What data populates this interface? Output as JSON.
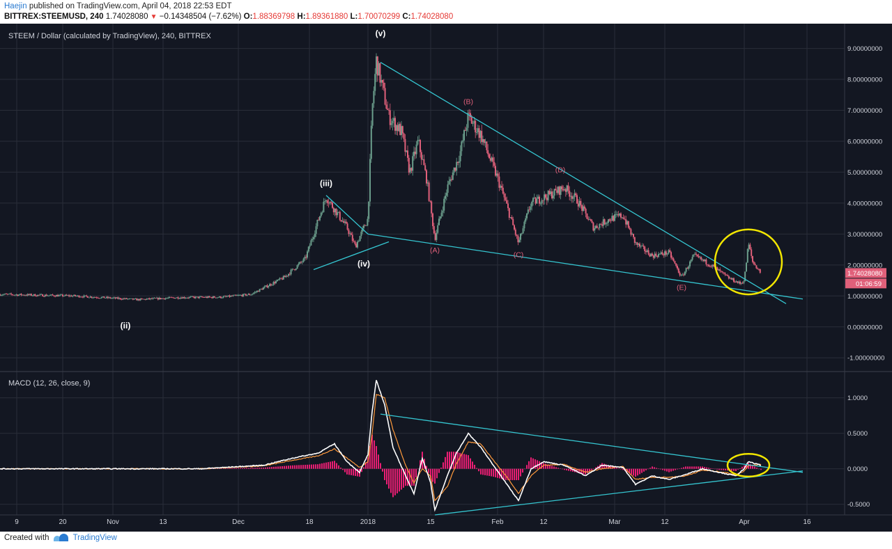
{
  "header": {
    "user": "Haejin",
    "published_text": "published on TradingView.com, April 04, 2018 22:53 EDT",
    "symbol": "BITTREX:STEEMUSD, 240",
    "last": "1.74028080",
    "change_arrow": "▼",
    "change": "−0.14348504 (−7.62%)",
    "o_label": "O:",
    "o": "1.88369798",
    "h_label": "H:",
    "h": "1.89361880",
    "l_label": "L:",
    "l": "1.70070299",
    "c_label": "C:",
    "c": "1.74028080"
  },
  "footer": {
    "created_with": "Created with",
    "brand": "TradingView",
    "logo_icon": "tradingview-logo-icon"
  },
  "colors": {
    "background": "#131722",
    "grid": "#2a2e39",
    "axis_text": "#d1d4dc",
    "candle_up": "#6b9e8c",
    "candle_down": "#e0607a",
    "trendline": "#35c6d1",
    "highlight_circle": "#f2e600",
    "wave_label_white": "#ffffff",
    "wave_label_red": "#e0607a",
    "macd_line": "#ffffff",
    "signal_line": "#ff9a3c",
    "histogram": "#e91e73",
    "price_tag": "#e0607a"
  },
  "chart_data": [
    {
      "type": "candlestick",
      "title": "STEEM / Dollar (calculated by TradingView), 240, BITTREX",
      "y_tick_labels": [
        "9.00000000",
        "8.00000000",
        "7.00000000",
        "6.00000000",
        "5.00000000",
        "4.00000000",
        "3.00000000",
        "2.00000000",
        "1.00000000",
        "0.00000000",
        "-1.00000000"
      ],
      "ylim": [
        -1.4,
        9.8
      ],
      "x_tick_labels": [
        "9",
        "20",
        "Nov",
        "13",
        "Dec",
        "18",
        "2018",
        "15",
        "Feb",
        "12",
        "Mar",
        "12",
        "Apr",
        "16"
      ],
      "x_ticks_day": [
        -84,
        -73,
        -61,
        -49,
        -31,
        -14,
        0,
        15,
        31,
        42,
        59,
        71,
        90,
        105
      ],
      "xlim_days": [
        -88,
        114
      ],
      "last_price_tag": "1.74028080",
      "countdown_tag": "01:06:59",
      "price_path": [
        {
          "x": -88,
          "y": 1.05
        },
        {
          "x": -70,
          "y": 1.0
        },
        {
          "x": -60,
          "y": 0.92
        },
        {
          "x": -55,
          "y": 0.88
        },
        {
          "x": -45,
          "y": 0.95
        },
        {
          "x": -35,
          "y": 0.96
        },
        {
          "x": -28,
          "y": 1.05
        },
        {
          "x": -20,
          "y": 1.6
        },
        {
          "x": -15,
          "y": 2.2
        },
        {
          "x": -10,
          "y": 4.2
        },
        {
          "x": -5,
          "y": 3.2
        },
        {
          "x": -3,
          "y": 2.6
        },
        {
          "x": 0,
          "y": 3.5
        },
        {
          "x": 1,
          "y": 7.0
        },
        {
          "x": 2,
          "y": 8.6
        },
        {
          "x": 5,
          "y": 6.8
        },
        {
          "x": 8,
          "y": 6.3
        },
        {
          "x": 10,
          "y": 5.0
        },
        {
          "x": 12,
          "y": 6.0
        },
        {
          "x": 14,
          "y": 4.8
        },
        {
          "x": 16,
          "y": 2.85
        },
        {
          "x": 19,
          "y": 4.5
        },
        {
          "x": 22,
          "y": 5.6
        },
        {
          "x": 24,
          "y": 6.8
        },
        {
          "x": 27,
          "y": 6.2
        },
        {
          "x": 29,
          "y": 5.5
        },
        {
          "x": 31,
          "y": 4.8
        },
        {
          "x": 33,
          "y": 4.0
        },
        {
          "x": 36,
          "y": 2.7
        },
        {
          "x": 39,
          "y": 4.0
        },
        {
          "x": 44,
          "y": 4.3
        },
        {
          "x": 47,
          "y": 4.5
        },
        {
          "x": 50,
          "y": 4.1
        },
        {
          "x": 54,
          "y": 3.2
        },
        {
          "x": 58,
          "y": 3.5
        },
        {
          "x": 61,
          "y": 3.6
        },
        {
          "x": 64,
          "y": 2.7
        },
        {
          "x": 68,
          "y": 2.3
        },
        {
          "x": 72,
          "y": 2.4
        },
        {
          "x": 75,
          "y": 1.6
        },
        {
          "x": 78,
          "y": 2.3
        },
        {
          "x": 82,
          "y": 2.0
        },
        {
          "x": 86,
          "y": 1.6
        },
        {
          "x": 89,
          "y": 1.4
        },
        {
          "x": 90,
          "y": 1.5
        },
        {
          "x": 91,
          "y": 2.7
        },
        {
          "x": 92,
          "y": 2.1
        },
        {
          "x": 94,
          "y": 1.74
        }
      ],
      "wave_labels": [
        {
          "label": "(ii)",
          "x": -58,
          "y": -0.05,
          "color": "white"
        },
        {
          "label": "(iii)",
          "x": -10,
          "y": 4.55,
          "color": "white"
        },
        {
          "label": "(iv)",
          "x": -1,
          "y": 1.95,
          "color": "white"
        },
        {
          "label": "(v)",
          "x": 3,
          "y": 9.4,
          "color": "white"
        },
        {
          "label": "(A)",
          "x": 16,
          "y": 2.4,
          "color": "red"
        },
        {
          "label": "(B)",
          "x": 24,
          "y": 7.2,
          "color": "red"
        },
        {
          "label": "(C)",
          "x": 36,
          "y": 2.25,
          "color": "red"
        },
        {
          "label": "(D)",
          "x": 46,
          "y": 5.0,
          "color": "red"
        },
        {
          "label": "(E)",
          "x": 75,
          "y": 1.2,
          "color": "red"
        }
      ],
      "trendlines": [
        {
          "x1": -13,
          "y1": 1.85,
          "x2": 5,
          "y2": 2.75
        },
        {
          "x1": -10,
          "y1": 4.25,
          "x2": 0,
          "y2": 3.0
        },
        {
          "x1": 3,
          "y1": 8.55,
          "x2": 100,
          "y2": 0.75
        },
        {
          "x1": 0,
          "y1": 3.0,
          "x2": 104,
          "y2": 0.9
        }
      ],
      "highlight": {
        "x": 91,
        "y": 2.1,
        "r_days": 8,
        "ry_value": 1.05
      }
    },
    {
      "type": "line",
      "title": "MACD (12, 26, close, 9)",
      "y_tick_labels": [
        "1.0000",
        "0.5000",
        "0.0000",
        "-0.5000"
      ],
      "ylim": [
        -0.65,
        1.35
      ],
      "series": [
        {
          "name": "MACD",
          "color": "white",
          "values": [
            {
              "x": -88,
              "y": 0.0
            },
            {
              "x": -40,
              "y": 0.0
            },
            {
              "x": -25,
              "y": 0.05
            },
            {
              "x": -18,
              "y": 0.15
            },
            {
              "x": -12,
              "y": 0.22
            },
            {
              "x": -8,
              "y": 0.35
            },
            {
              "x": -5,
              "y": 0.1
            },
            {
              "x": -2,
              "y": -0.05
            },
            {
              "x": 0,
              "y": 0.2
            },
            {
              "x": 1,
              "y": 0.8
            },
            {
              "x": 2,
              "y": 1.25
            },
            {
              "x": 4,
              "y": 0.9
            },
            {
              "x": 6,
              "y": 0.3
            },
            {
              "x": 9,
              "y": -0.1
            },
            {
              "x": 11,
              "y": -0.35
            },
            {
              "x": 13,
              "y": 0.15
            },
            {
              "x": 15,
              "y": -0.2
            },
            {
              "x": 16,
              "y": -0.58
            },
            {
              "x": 19,
              "y": -0.1
            },
            {
              "x": 21,
              "y": 0.2
            },
            {
              "x": 24,
              "y": 0.5
            },
            {
              "x": 27,
              "y": 0.3
            },
            {
              "x": 30,
              "y": 0.05
            },
            {
              "x": 33,
              "y": -0.2
            },
            {
              "x": 36,
              "y": -0.45
            },
            {
              "x": 39,
              "y": 0.0
            },
            {
              "x": 42,
              "y": 0.1
            },
            {
              "x": 47,
              "y": 0.05
            },
            {
              "x": 52,
              "y": -0.1
            },
            {
              "x": 56,
              "y": 0.05
            },
            {
              "x": 61,
              "y": 0.02
            },
            {
              "x": 64,
              "y": -0.22
            },
            {
              "x": 68,
              "y": -0.1
            },
            {
              "x": 72,
              "y": -0.15
            },
            {
              "x": 76,
              "y": -0.08
            },
            {
              "x": 80,
              "y": 0.0
            },
            {
              "x": 84,
              "y": -0.05
            },
            {
              "x": 88,
              "y": -0.1
            },
            {
              "x": 90,
              "y": 0.0
            },
            {
              "x": 91,
              "y": 0.1
            },
            {
              "x": 94,
              "y": 0.05
            }
          ]
        },
        {
          "name": "Signal",
          "color": "orange",
          "values": [
            {
              "x": -88,
              "y": 0.0
            },
            {
              "x": -40,
              "y": 0.0
            },
            {
              "x": -25,
              "y": 0.04
            },
            {
              "x": -18,
              "y": 0.12
            },
            {
              "x": -12,
              "y": 0.18
            },
            {
              "x": -8,
              "y": 0.28
            },
            {
              "x": -5,
              "y": 0.15
            },
            {
              "x": -2,
              "y": 0.02
            },
            {
              "x": 0,
              "y": 0.1
            },
            {
              "x": 1,
              "y": 0.5
            },
            {
              "x": 2,
              "y": 1.05
            },
            {
              "x": 4,
              "y": 1.0
            },
            {
              "x": 6,
              "y": 0.55
            },
            {
              "x": 9,
              "y": 0.05
            },
            {
              "x": 11,
              "y": -0.2
            },
            {
              "x": 13,
              "y": 0.0
            },
            {
              "x": 15,
              "y": -0.1
            },
            {
              "x": 16,
              "y": -0.45
            },
            {
              "x": 19,
              "y": -0.25
            },
            {
              "x": 21,
              "y": 0.05
            },
            {
              "x": 24,
              "y": 0.38
            },
            {
              "x": 27,
              "y": 0.35
            },
            {
              "x": 30,
              "y": 0.12
            },
            {
              "x": 33,
              "y": -0.1
            },
            {
              "x": 36,
              "y": -0.35
            },
            {
              "x": 39,
              "y": -0.1
            },
            {
              "x": 42,
              "y": 0.05
            },
            {
              "x": 47,
              "y": 0.06
            },
            {
              "x": 52,
              "y": -0.05
            },
            {
              "x": 56,
              "y": 0.0
            },
            {
              "x": 61,
              "y": 0.03
            },
            {
              "x": 64,
              "y": -0.15
            },
            {
              "x": 68,
              "y": -0.12
            },
            {
              "x": 72,
              "y": -0.12
            },
            {
              "x": 76,
              "y": -0.1
            },
            {
              "x": 80,
              "y": -0.02
            },
            {
              "x": 84,
              "y": -0.04
            },
            {
              "x": 88,
              "y": -0.08
            },
            {
              "x": 90,
              "y": -0.03
            },
            {
              "x": 91,
              "y": 0.05
            },
            {
              "x": 94,
              "y": 0.06
            }
          ]
        }
      ],
      "trendlines": [
        {
          "x1": 3,
          "y1": 0.77,
          "x2": 104,
          "y2": -0.05
        },
        {
          "x1": 16,
          "y1": -0.65,
          "x2": 104,
          "y2": -0.03
        }
      ],
      "highlight": {
        "x": 91,
        "y": 0.05,
        "r_days": 5,
        "ry_value": 0.16
      }
    }
  ]
}
